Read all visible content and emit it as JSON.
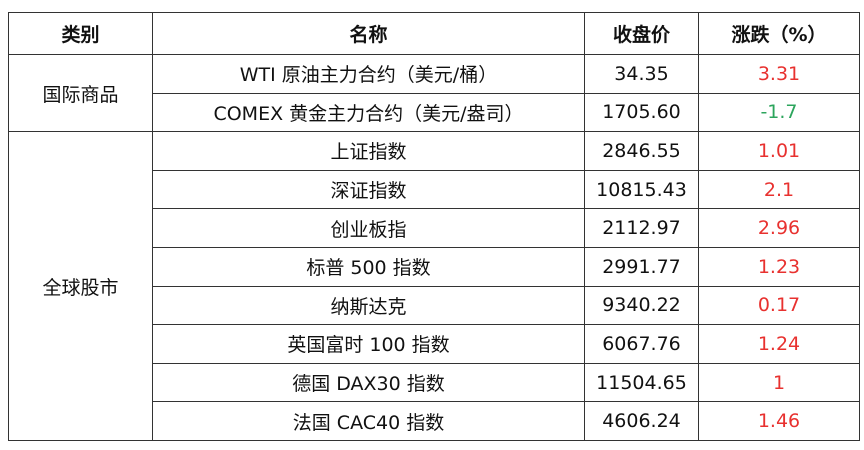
{
  "table": {
    "header": [
      "类别",
      "名称",
      "收盘价",
      "涨跌（%）"
    ],
    "groups": [
      {
        "category": "国际商品",
        "rows": [
          [
            "WTI 原油主力合约（美元/桶）",
            "34.35",
            "3.31"
          ],
          [
            "COMEX 黄金主力合约（美元/盎司）",
            "1705.60",
            "-1.7"
          ]
        ]
      },
      {
        "category": "全球股市",
        "rows": [
          [
            "上证指数",
            "2846.55",
            "1.01"
          ],
          [
            "深证指数",
            "10815.43",
            "2.1"
          ],
          [
            "创业板指",
            "2112.97",
            "2.96"
          ],
          [
            "标普 500 指数",
            "2991.77",
            "1.23"
          ],
          [
            "纳斯达克",
            "9340.22",
            "0.17"
          ],
          [
            "英国富时 100 指数",
            "6067.76",
            "1.24"
          ],
          [
            "德国 DAX30 指数",
            "11504.65",
            "1"
          ],
          [
            "法国 CAC40 指数",
            "4606.24",
            "1.46"
          ]
        ]
      }
    ]
  }
}
